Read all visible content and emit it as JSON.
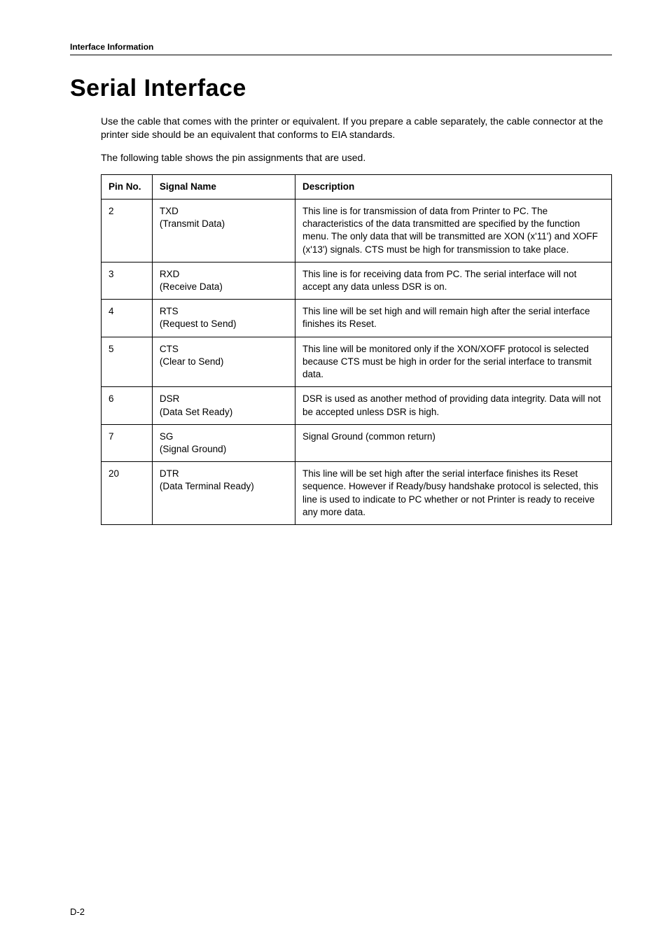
{
  "header": {
    "running": "Interface Information"
  },
  "title": "Serial Interface",
  "intro": [
    "Use the cable that comes with the printer or equivalent. If you prepare a cable separately, the cable connector at the printer side should be an equivalent that conforms to EIA standards.",
    "The following table shows the pin assignments that are used."
  ],
  "table": {
    "headers": {
      "pin": "Pin No.",
      "signal": "Signal Name",
      "desc": "Description"
    },
    "rows": [
      {
        "pin": "2",
        "signal_code": "TXD",
        "signal_name": "(Transmit Data)",
        "desc": "This line is for transmission of data from Printer to PC. The characteristics of the data transmitted are specified by the function menu. The only data that will be transmitted are XON (x'11') and XOFF (x'13') signals. CTS must be high for transmission to take place."
      },
      {
        "pin": "3",
        "signal_code": "RXD",
        "signal_name": "(Receive Data)",
        "desc": "This line is for receiving data from PC. The serial interface will not accept any data unless DSR is on."
      },
      {
        "pin": "4",
        "signal_code": "RTS",
        "signal_name": "(Request to Send)",
        "desc": "This line will be set high and will remain high after the serial interface finishes its Reset."
      },
      {
        "pin": "5",
        "signal_code": "CTS",
        "signal_name": "(Clear to Send)",
        "desc": "This line will be monitored only if the XON/XOFF protocol is selected because CTS must be high in order for the serial interface to transmit data."
      },
      {
        "pin": "6",
        "signal_code": "DSR",
        "signal_name": "(Data Set Ready)",
        "desc": "DSR is used as another method of providing data integrity. Data will not be accepted unless DSR is high."
      },
      {
        "pin": "7",
        "signal_code": "SG",
        "signal_name": "(Signal Ground)",
        "desc": "Signal Ground (common return)"
      },
      {
        "pin": "20",
        "signal_code": "DTR",
        "signal_name": "(Data Terminal Ready)",
        "desc": "This line will be set high after the serial interface finishes its Reset sequence. However if Ready/busy handshake protocol is selected, this line is used to indicate to PC whether or not Printer is ready to receive any more data."
      }
    ]
  },
  "footer": {
    "page": "D-2"
  }
}
